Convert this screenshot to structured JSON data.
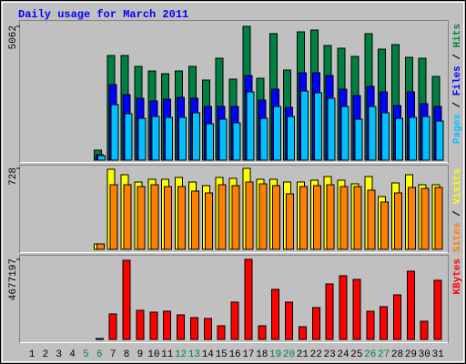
{
  "title": "Daily usage for March 2011",
  "chart_data": [
    {
      "type": "bar",
      "ylim": [
        0,
        5062
      ],
      "yticks": [
        5062
      ],
      "legend_separator": " / ",
      "series": [
        {
          "name": "Hits",
          "color": "#008040",
          "values": [
            0,
            0,
            0,
            0,
            0,
            380,
            3960,
            3960,
            3547,
            3375,
            3271,
            3375,
            3547,
            3030,
            3857,
            3064,
            5062,
            3099,
            4787,
            3409,
            4855,
            4924,
            4339,
            4236,
            3926,
            4787,
            4201,
            4373,
            3891,
            3857,
            3168
          ]
        },
        {
          "name": "Files",
          "color": "#0000ff",
          "values": [
            0,
            0,
            0,
            0,
            0,
            200,
            2858,
            2480,
            2342,
            2238,
            2307,
            2376,
            2342,
            2032,
            2032,
            2032,
            3202,
            2273,
            2686,
            1997,
            3306,
            3306,
            3202,
            2686,
            2445,
            2789,
            2583,
            2066,
            2583,
            2135,
            2032
          ]
        },
        {
          "name": "Pages",
          "color": "#00c0ff",
          "values": [
            0,
            0,
            0,
            0,
            0,
            170,
            2100,
            1756,
            1584,
            1653,
            1618,
            1618,
            1791,
            1377,
            1550,
            1412,
            2583,
            1584,
            2032,
            1653,
            2617,
            2548,
            2342,
            2032,
            1550,
            2032,
            1791,
            1584,
            1618,
            1653,
            1481
          ]
        }
      ]
    },
    {
      "type": "bar",
      "ylim": [
        0,
        728
      ],
      "yticks": [
        728
      ],
      "legend_separator": " / ",
      "series": [
        {
          "name": "Visits",
          "color": "#ffff00",
          "values": [
            0,
            0,
            0,
            0,
            0,
            49,
            720,
            671,
            605,
            630,
            630,
            646,
            605,
            573,
            646,
            638,
            728,
            630,
            630,
            605,
            605,
            621,
            654,
            621,
            589,
            654,
            474,
            597,
            671,
            581,
            581
          ]
        },
        {
          "name": "Sites",
          "color": "#ff8000",
          "values": [
            0,
            0,
            0,
            0,
            0,
            49,
            581,
            581,
            564,
            581,
            564,
            564,
            523,
            507,
            581,
            573,
            605,
            589,
            573,
            499,
            564,
            573,
            581,
            564,
            564,
            532,
            425,
            507,
            556,
            548,
            556
          ]
        }
      ]
    },
    {
      "type": "bar",
      "ylim": [
        0,
        4677197
      ],
      "yticks": [
        4677197
      ],
      "categories": [
        "1",
        "2",
        "3",
        "4",
        "5",
        "6",
        "7",
        "8",
        "9",
        "10",
        "11",
        "12",
        "13",
        "14",
        "15",
        "16",
        "17",
        "18",
        "19",
        "20",
        "21",
        "22",
        "23",
        "24",
        "25",
        "26",
        "27",
        "28",
        "29",
        "30",
        "31"
      ],
      "highlight_categories": [
        "5",
        "6",
        "12",
        "13",
        "19",
        "20",
        "26",
        "27"
      ],
      "highlight_color": "#008040",
      "series": [
        {
          "name": "KBytes",
          "color": "#ff0000",
          "values": [
            0,
            0,
            0,
            0,
            0,
            53000,
            1488000,
            4624000,
            1701000,
            1594000,
            1648000,
            1435000,
            1276000,
            1222000,
            797000,
            2179000,
            4677197,
            797000,
            2923000,
            2179000,
            744000,
            1860000,
            3242000,
            3720000,
            3508000,
            1648000,
            1913000,
            2604000,
            3986000,
            1063000,
            3455000
          ]
        }
      ]
    }
  ]
}
